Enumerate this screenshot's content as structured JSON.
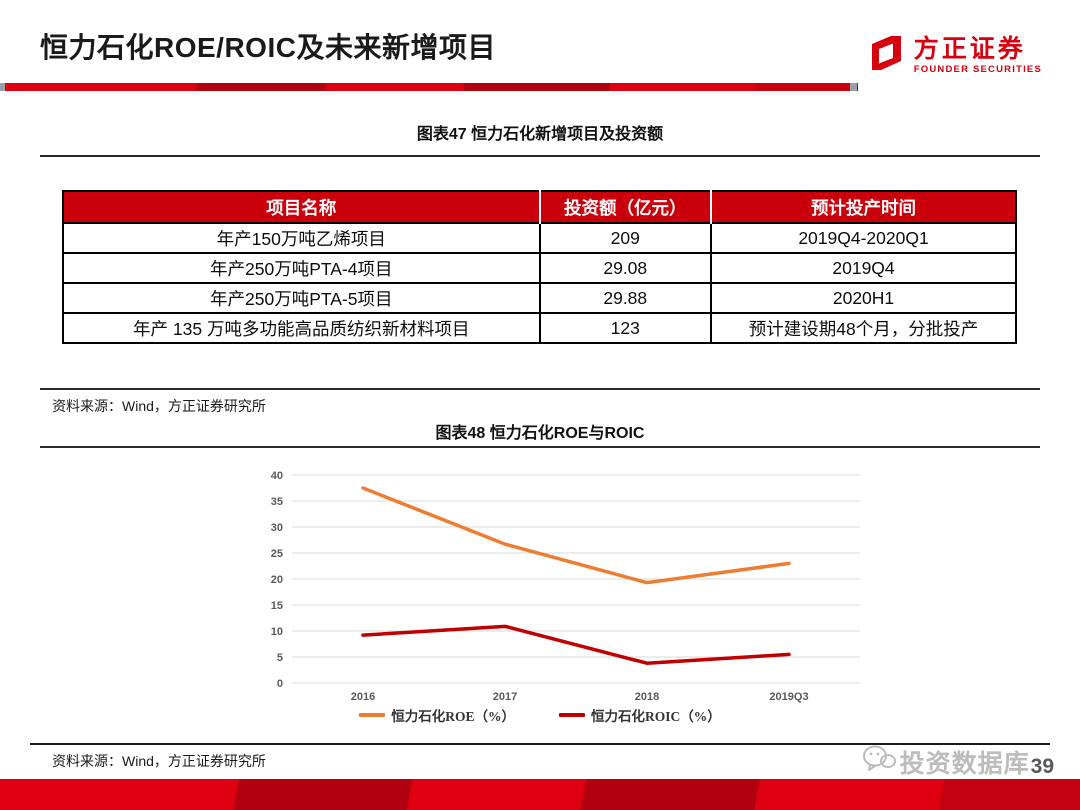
{
  "header": {
    "title": "恒力石化ROE/ROIC及未来新增项目",
    "logo_cn": "方正证券",
    "logo_en": "FOUNDER SECURITIES"
  },
  "figure47": {
    "caption": "图表47 恒力石化新增项目及投资额",
    "table": {
      "headers": [
        "项目名称",
        "投资额（亿元）",
        "预计投产时间"
      ],
      "rows": [
        [
          "年产150万吨乙烯项目",
          "209",
          "2019Q4-2020Q1"
        ],
        [
          "年产250万吨PTA-4项目",
          "29.08",
          "2019Q4"
        ],
        [
          "年产250万吨PTA-5项目",
          "29.88",
          "2020H1"
        ],
        [
          "年产 135 万吨多功能高品质纺织新材料项目",
          "123",
          "预计建设期48个月，分批投产"
        ]
      ]
    },
    "source": "资料来源：Wind，方正证券研究所"
  },
  "figure48": {
    "caption": "图表48 恒力石化ROE与ROIC",
    "source": "资料来源：Wind，方正证券研究所"
  },
  "chart_data": {
    "type": "line",
    "title": "恒力石化ROE与ROIC",
    "categories": [
      "2016",
      "2017",
      "2018",
      "2019Q3"
    ],
    "series": [
      {
        "name": "恒力石化ROE（%）",
        "color": "#ED7D31",
        "values": [
          37.5,
          26.7,
          19.3,
          23.0
        ]
      },
      {
        "name": "恒力石化ROIC（%）",
        "color": "#C00000",
        "values": [
          9.2,
          10.9,
          3.8,
          5.5
        ]
      }
    ],
    "ylim": [
      0,
      40
    ],
    "ytick_step": 5,
    "grid": true,
    "legend_position": "bottom"
  },
  "footer": {
    "watermark": "投资数据库",
    "page_number": "39"
  },
  "colors": {
    "table_header_red": "#C9000B",
    "logo_red": "#D7000F",
    "bar_bright_red": "#DE0011",
    "bar_dark_red": "#B30011",
    "gridline": "#D9D9D9",
    "axis_text": "#595959"
  }
}
